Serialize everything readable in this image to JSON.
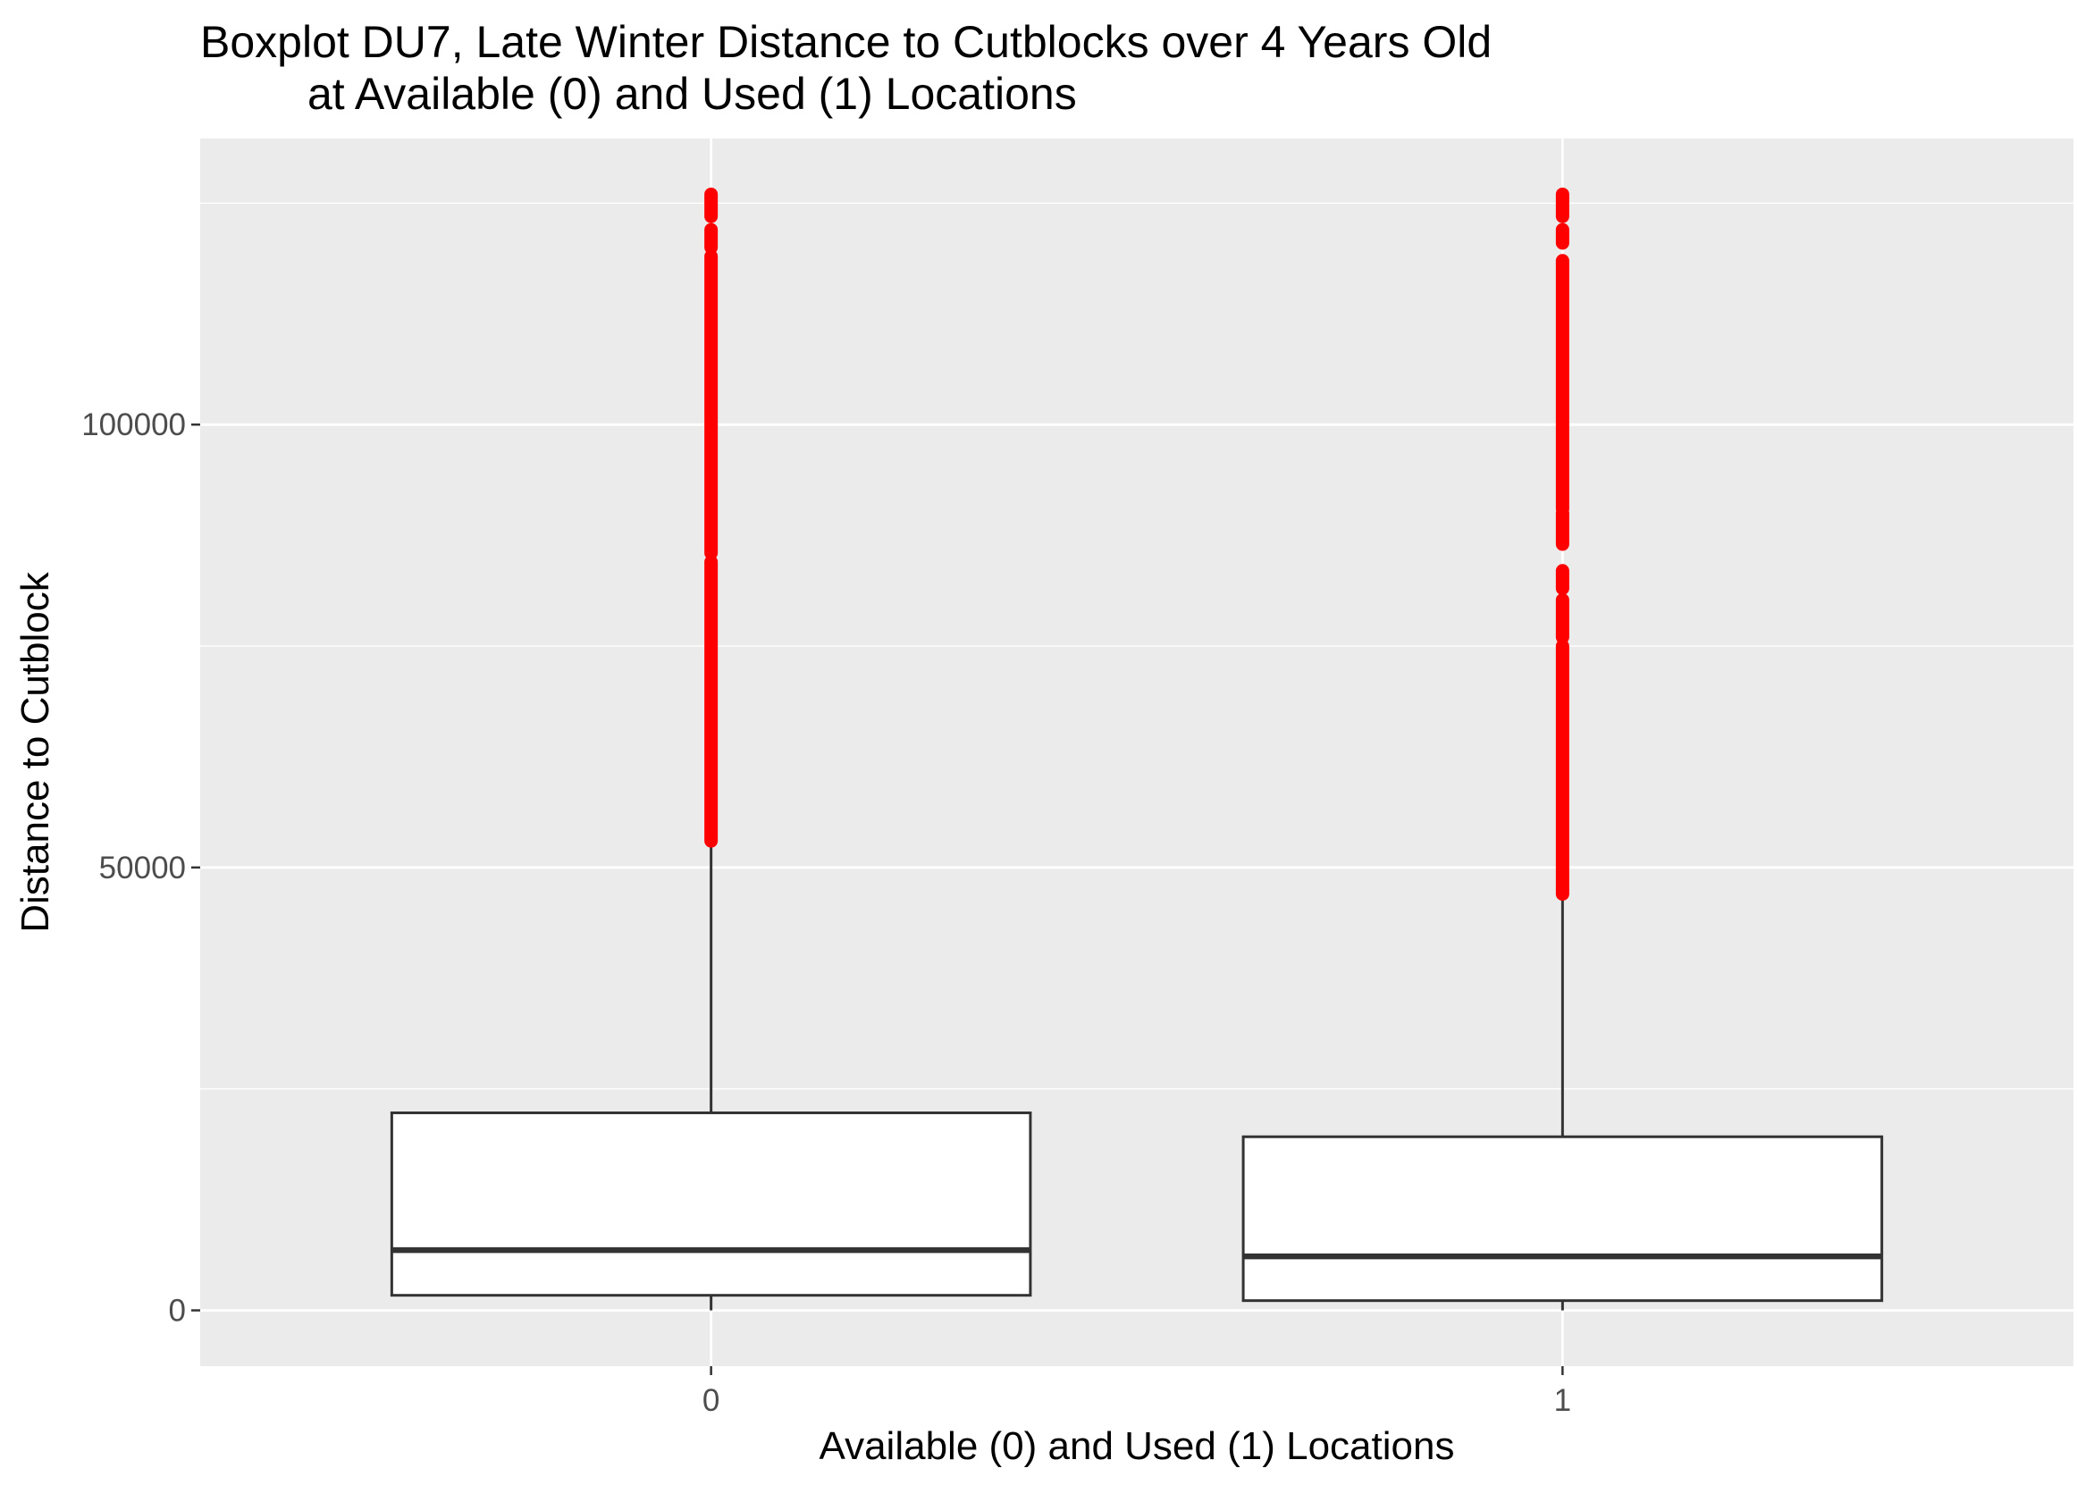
{
  "chart_data": {
    "type": "boxplot",
    "title_line1": "Boxplot DU7, Late Winter Distance to Cutblocks over 4 Years Old",
    "title_line2": "at Available (0) and Used (1) Locations",
    "xlabel": "Available (0) and Used (1) Locations",
    "ylabel": "Distance to Cutblock",
    "categories": [
      "0",
      "1"
    ],
    "ylim": [
      -6300,
      132300
    ],
    "y_ticks": [
      0,
      50000,
      100000
    ],
    "y_tick_labels": [
      "0",
      "50000",
      "100000"
    ],
    "grid": true,
    "panel_color": "#ebebeb",
    "outlier_color": "#ff0000",
    "boxes": [
      {
        "category": "0",
        "lower_whisker": 0,
        "q1": 1700,
        "median": 6800,
        "q3": 22300,
        "upper_whisker": 52700,
        "outlier_ranges": [
          [
            53000,
            84500
          ],
          [
            85500,
            119000
          ],
          [
            120000,
            122000
          ],
          [
            123500,
            126000
          ]
        ]
      },
      {
        "category": "1",
        "lower_whisker": 0,
        "q1": 1100,
        "median": 6100,
        "q3": 19600,
        "upper_whisker": 46800,
        "outlier_ranges": [
          [
            47000,
            75000
          ],
          [
            76000,
            80200
          ],
          [
            81500,
            83500
          ],
          [
            86500,
            90000
          ],
          [
            90500,
            118500
          ],
          [
            120500,
            122000
          ],
          [
            123500,
            126000
          ]
        ]
      }
    ]
  }
}
